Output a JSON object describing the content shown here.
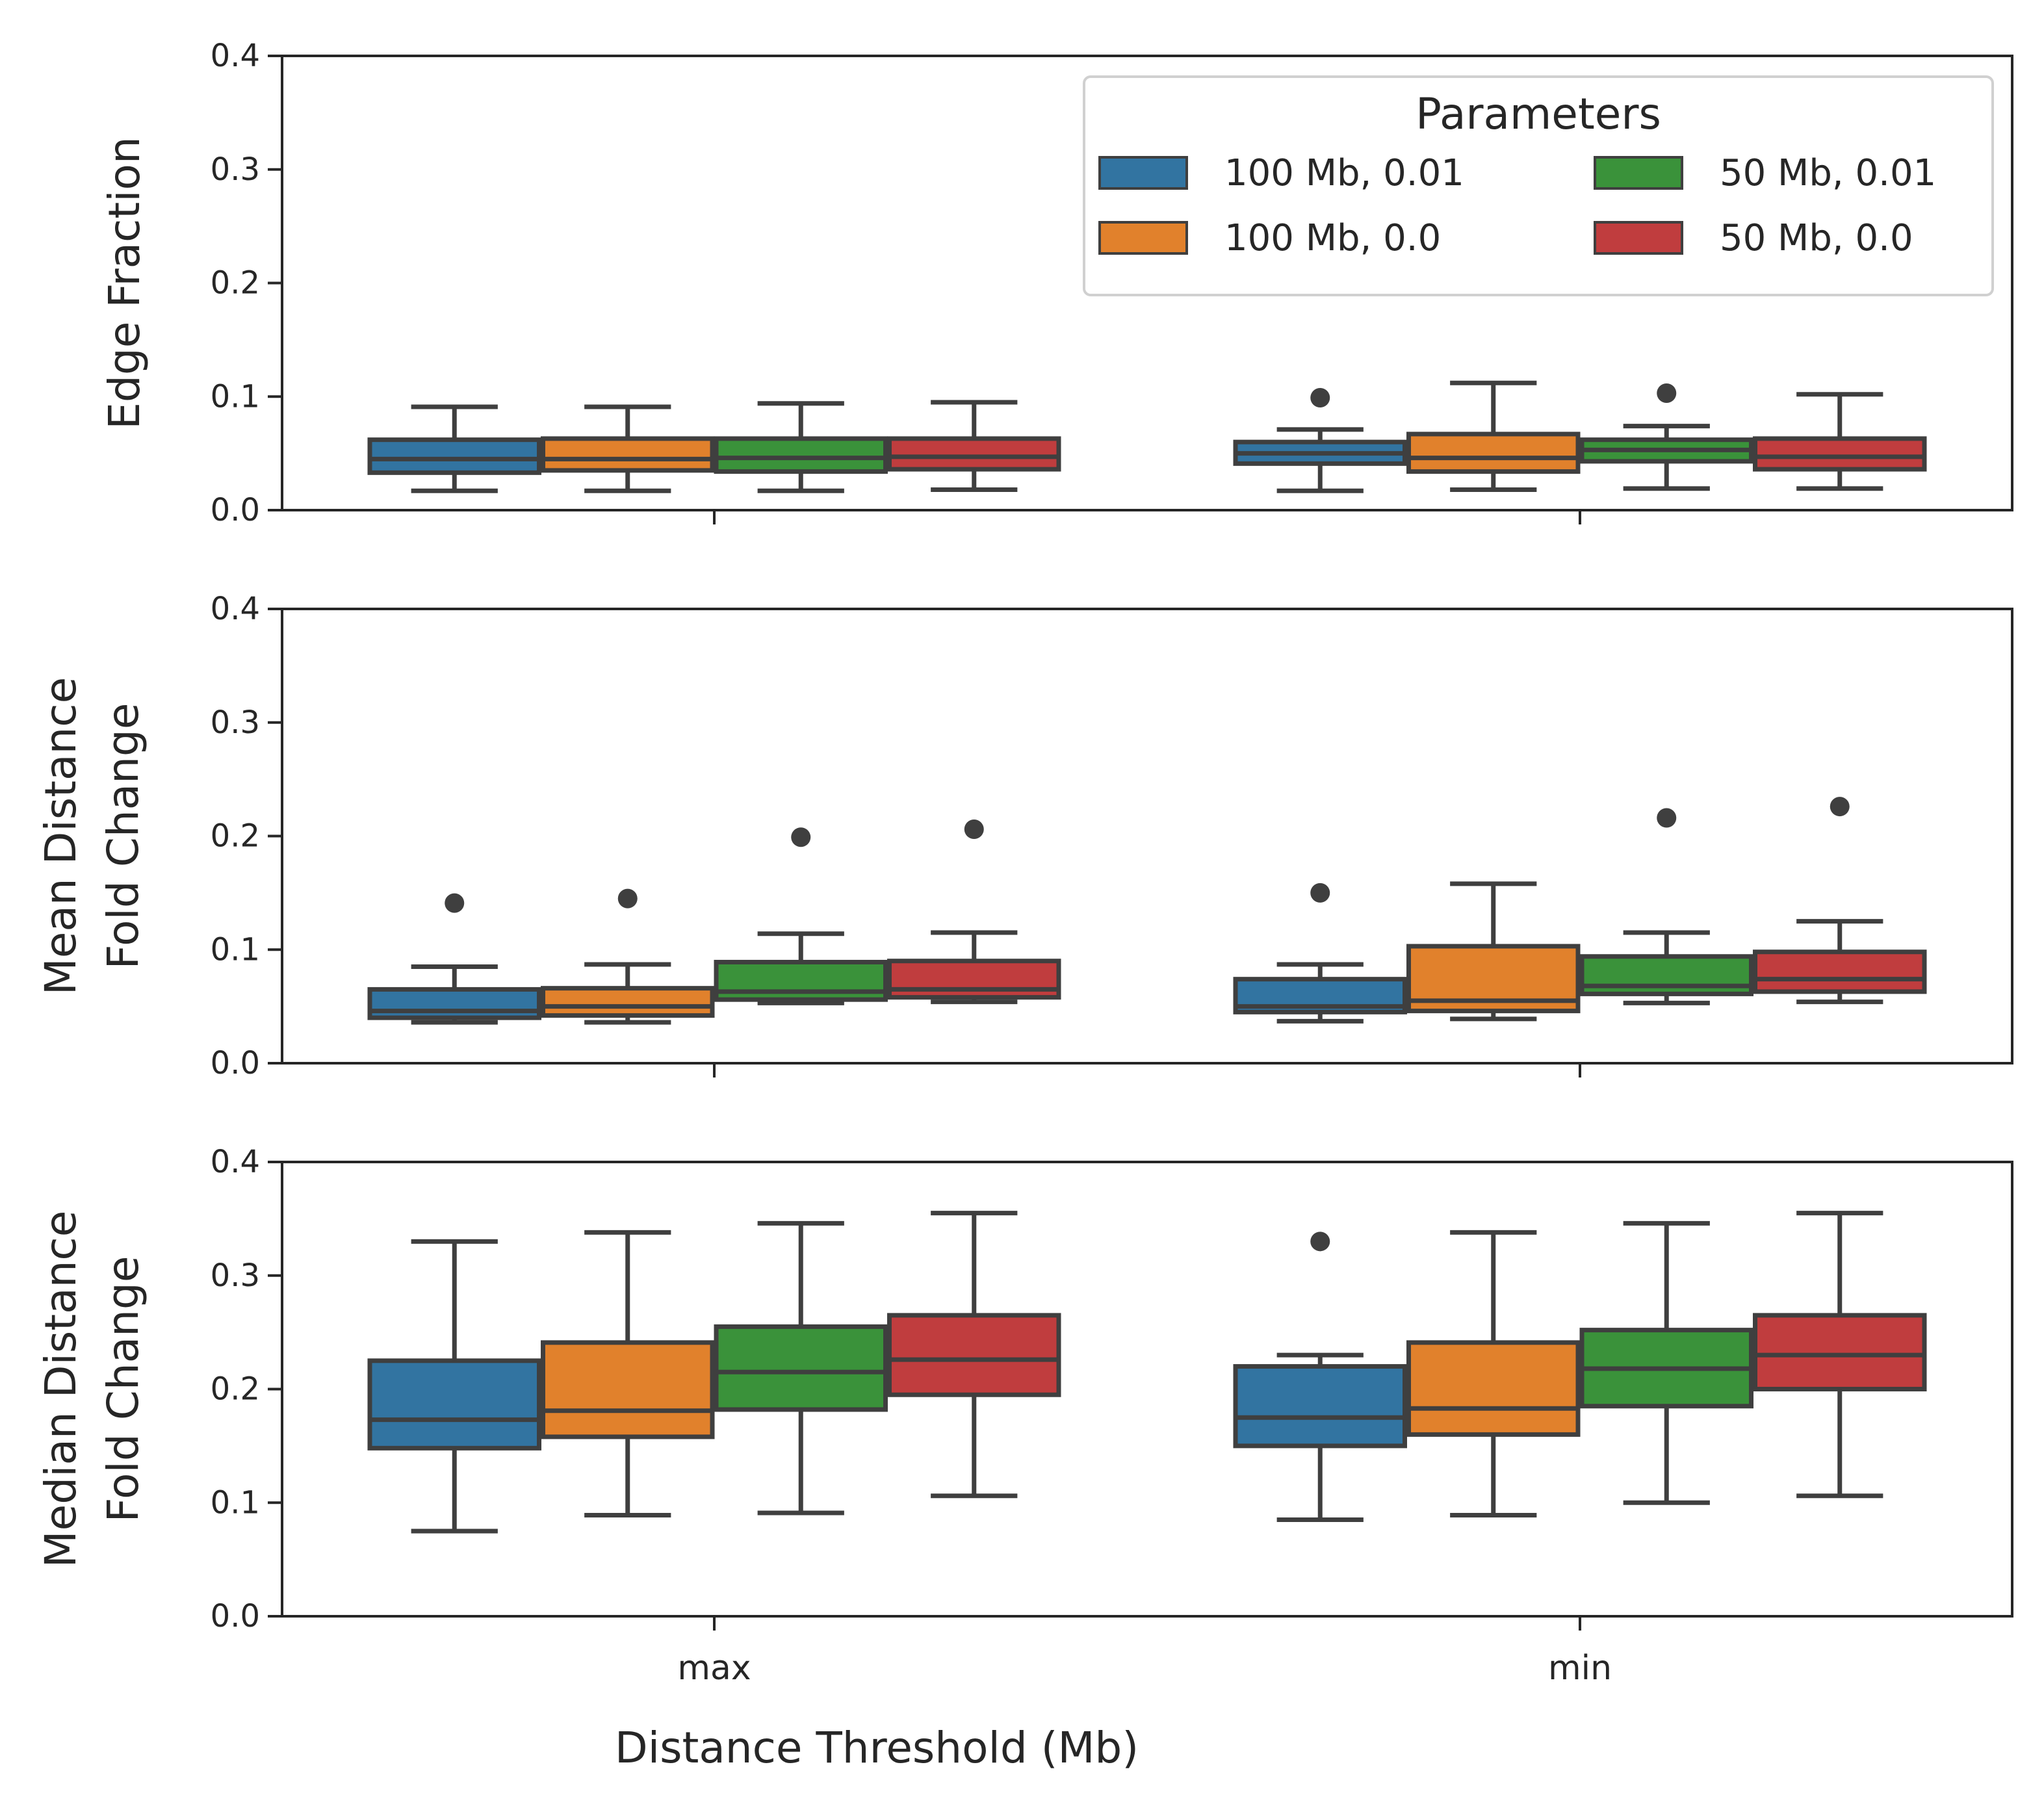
{
  "chart_data": {
    "type": "box",
    "xlabel": "Distance Threshold (Mb)",
    "categories": [
      "max",
      "min"
    ],
    "legend": {
      "title": "Parameters",
      "placement": "top-right",
      "columns": 2,
      "entries": [
        {
          "name": "100 Mb, 0.01",
          "color": "#3274a1"
        },
        {
          "name": "100 Mb, 0.0",
          "color": "#e1812c"
        },
        {
          "name": "50 Mb, 0.01",
          "color": "#3a923a"
        },
        {
          "name": "50 Mb, 0.0",
          "color": "#c03d3e"
        }
      ]
    },
    "subplots": [
      {
        "ylabel": "Edge Fraction",
        "ylim": [
          0,
          0.4
        ],
        "yticks": [
          "0.0",
          "0.1",
          "0.2",
          "0.3",
          "0.4"
        ],
        "series": [
          {
            "name": "100 Mb, 0.01",
            "boxes": [
              {
                "whislo": 0.017,
                "q1": 0.033,
                "med": 0.045,
                "q3": 0.062,
                "whishi": 0.091,
                "fliers": []
              },
              {
                "whislo": 0.017,
                "q1": 0.041,
                "med": 0.05,
                "q3": 0.06,
                "whishi": 0.071,
                "fliers": [
                  0.099
                ]
              }
            ]
          },
          {
            "name": "100 Mb, 0.0",
            "boxes": [
              {
                "whislo": 0.017,
                "q1": 0.035,
                "med": 0.045,
                "q3": 0.063,
                "whishi": 0.091,
                "fliers": []
              },
              {
                "whislo": 0.018,
                "q1": 0.034,
                "med": 0.046,
                "q3": 0.067,
                "whishi": 0.112,
                "fliers": []
              }
            ]
          },
          {
            "name": "50 Mb, 0.01",
            "boxes": [
              {
                "whislo": 0.017,
                "q1": 0.034,
                "med": 0.046,
                "q3": 0.063,
                "whishi": 0.094,
                "fliers": []
              },
              {
                "whislo": 0.019,
                "q1": 0.043,
                "med": 0.053,
                "q3": 0.062,
                "whishi": 0.074,
                "fliers": [
                  0.103
                ]
              }
            ]
          },
          {
            "name": "50 Mb, 0.0",
            "boxes": [
              {
                "whislo": 0.018,
                "q1": 0.036,
                "med": 0.047,
                "q3": 0.063,
                "whishi": 0.095,
                "fliers": []
              },
              {
                "whislo": 0.019,
                "q1": 0.036,
                "med": 0.047,
                "q3": 0.063,
                "whishi": 0.102,
                "fliers": []
              }
            ]
          }
        ]
      },
      {
        "ylabel": "Mean Distance\nFold Change",
        "ylim": [
          0,
          0.4
        ],
        "yticks": [
          "0.0",
          "0.1",
          "0.2",
          "0.3",
          "0.4"
        ],
        "series": [
          {
            "name": "100 Mb, 0.01",
            "boxes": [
              {
                "whislo": 0.036,
                "q1": 0.04,
                "med": 0.046,
                "q3": 0.065,
                "whishi": 0.085,
                "fliers": [
                  0.141
                ]
              },
              {
                "whislo": 0.037,
                "q1": 0.045,
                "med": 0.05,
                "q3": 0.074,
                "whishi": 0.087,
                "fliers": [
                  0.15
                ]
              }
            ]
          },
          {
            "name": "100 Mb, 0.0",
            "boxes": [
              {
                "whislo": 0.036,
                "q1": 0.042,
                "med": 0.05,
                "q3": 0.066,
                "whishi": 0.087,
                "fliers": [
                  0.145
                ]
              },
              {
                "whislo": 0.039,
                "q1": 0.046,
                "med": 0.055,
                "q3": 0.103,
                "whishi": 0.158,
                "fliers": []
              }
            ]
          },
          {
            "name": "50 Mb, 0.01",
            "boxes": [
              {
                "whislo": 0.053,
                "q1": 0.056,
                "med": 0.063,
                "q3": 0.089,
                "whishi": 0.114,
                "fliers": [
                  0.199
                ]
              },
              {
                "whislo": 0.053,
                "q1": 0.061,
                "med": 0.068,
                "q3": 0.094,
                "whishi": 0.115,
                "fliers": [
                  0.216
                ]
              }
            ]
          },
          {
            "name": "50 Mb, 0.0",
            "boxes": [
              {
                "whislo": 0.054,
                "q1": 0.058,
                "med": 0.065,
                "q3": 0.09,
                "whishi": 0.115,
                "fliers": [
                  0.206
                ]
              },
              {
                "whislo": 0.054,
                "q1": 0.063,
                "med": 0.074,
                "q3": 0.098,
                "whishi": 0.125,
                "fliers": [
                  0.226
                ]
              }
            ]
          }
        ]
      },
      {
        "ylabel": "Median Distance\nFold Change",
        "ylim": [
          0,
          0.4
        ],
        "yticks": [
          "0.0",
          "0.1",
          "0.2",
          "0.3",
          "0.4"
        ],
        "series": [
          {
            "name": "100 Mb, 0.01",
            "boxes": [
              {
                "whislo": 0.075,
                "q1": 0.148,
                "med": 0.173,
                "q3": 0.225,
                "whishi": 0.33,
                "fliers": []
              },
              {
                "whislo": 0.085,
                "q1": 0.15,
                "med": 0.175,
                "q3": 0.22,
                "whishi": 0.23,
                "fliers": [
                  0.33
                ]
              }
            ]
          },
          {
            "name": "100 Mb, 0.0",
            "boxes": [
              {
                "whislo": 0.089,
                "q1": 0.158,
                "med": 0.181,
                "q3": 0.241,
                "whishi": 0.338,
                "fliers": []
              },
              {
                "whislo": 0.089,
                "q1": 0.16,
                "med": 0.183,
                "q3": 0.241,
                "whishi": 0.338,
                "fliers": []
              }
            ]
          },
          {
            "name": "50 Mb, 0.01",
            "boxes": [
              {
                "whislo": 0.091,
                "q1": 0.182,
                "med": 0.215,
                "q3": 0.255,
                "whishi": 0.346,
                "fliers": []
              },
              {
                "whislo": 0.1,
                "q1": 0.185,
                "med": 0.218,
                "q3": 0.252,
                "whishi": 0.346,
                "fliers": []
              }
            ]
          },
          {
            "name": "50 Mb, 0.0",
            "boxes": [
              {
                "whislo": 0.106,
                "q1": 0.195,
                "med": 0.226,
                "q3": 0.265,
                "whishi": 0.355,
                "fliers": []
              },
              {
                "whislo": 0.106,
                "q1": 0.2,
                "med": 0.23,
                "q3": 0.265,
                "whishi": 0.355,
                "fliers": []
              }
            ]
          }
        ]
      }
    ]
  }
}
